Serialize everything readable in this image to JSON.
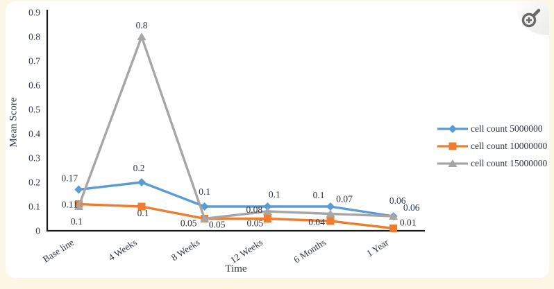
{
  "page": {
    "background_color": "#fcf7e4"
  },
  "card": {
    "background_color": "#ffffff"
  },
  "zoom_button": {
    "icon": "magnifier-plus"
  },
  "chart_data": {
    "type": "line",
    "title": "",
    "xlabel": "Time",
    "ylabel": "Mean Score",
    "categories": [
      "Base line",
      "4 Weeks",
      "8 Weeks",
      "12 Weeks",
      "6 Months",
      "1 Year"
    ],
    "series": [
      {
        "name": "cell count 5000000",
        "color": "#5b9bd5",
        "marker": "diamond",
        "values": [
          0.17,
          0.2,
          0.1,
          0.1,
          0.1,
          0.06
        ]
      },
      {
        "name": "cell count 10000000",
        "color": "#ed7d31",
        "marker": "square",
        "values": [
          0.11,
          0.1,
          0.05,
          0.05,
          0.04,
          0.01
        ]
      },
      {
        "name": "cell count 15000000",
        "color": "#a6a6a6",
        "marker": "triangle",
        "values": [
          0.1,
          0.8,
          0.05,
          0.08,
          0.07,
          0.06
        ]
      }
    ],
    "ylim": [
      0,
      0.9
    ],
    "ytick_step": 0.1,
    "yticks": [
      "0",
      "0.1",
      "0.2",
      "0.3",
      "0.4",
      "0.5",
      "0.6",
      "0.7",
      "0.8",
      "0.9"
    ],
    "grid": false,
    "legend_position": "right",
    "data_labels": true,
    "axis_color": "#1a1a1a",
    "text_color": "#2b3440"
  }
}
